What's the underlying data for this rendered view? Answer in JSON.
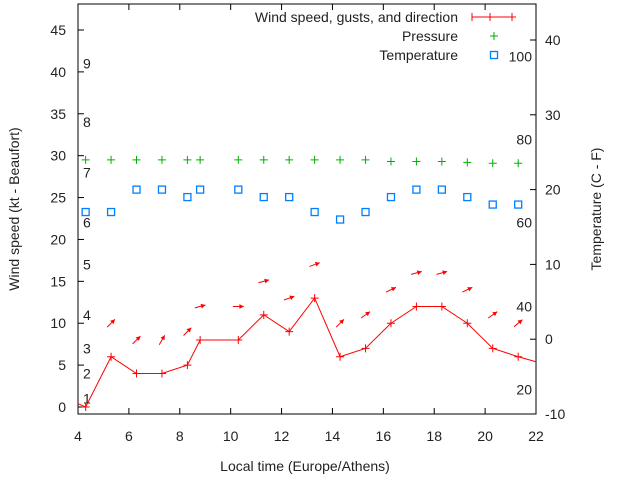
{
  "chart_data": {
    "type": "line",
    "title": "",
    "xlabel": "Local time (Europe/Athens)",
    "ylabel": "Wind speed (kt - Beaufort)",
    "y2label": "Temperature (C - F)",
    "xlim": [
      4,
      22
    ],
    "ylim": [
      0,
      45
    ],
    "y2lim": [
      -10,
      40
    ],
    "grid": false,
    "legend_position": "top-right",
    "x_ticks": [
      "4",
      "6",
      "8",
      "10",
      "12",
      "14",
      "16",
      "18",
      "20",
      "22"
    ],
    "y_ticks": [
      "0",
      "5",
      "10",
      "15",
      "20",
      "25",
      "30",
      "35",
      "40",
      "45"
    ],
    "y2_ticks": [
      "-10",
      "0",
      "10",
      "20",
      "30",
      "40"
    ],
    "beaufort_labels": [
      {
        "label": "1",
        "kt": 1
      },
      {
        "label": "2",
        "kt": 4
      },
      {
        "label": "3",
        "kt": 7
      },
      {
        "label": "4",
        "kt": 11
      },
      {
        "label": "5",
        "kt": 17
      },
      {
        "label": "6",
        "kt": 22
      },
      {
        "label": "7",
        "kt": 28
      },
      {
        "label": "8",
        "kt": 34
      },
      {
        "label": "9",
        "kt": 41
      }
    ],
    "fahrenheit_labels": [
      {
        "label": "20",
        "c": -6.7
      },
      {
        "label": "40",
        "c": 4.4
      },
      {
        "label": "60",
        "c": 15.6
      },
      {
        "label": "80",
        "c": 26.7
      },
      {
        "label": "100",
        "c": 37.8
      }
    ],
    "series": [
      {
        "name": "Wind speed, gusts, and direction",
        "color": "#ff0000",
        "x": [
          4.3,
          5.3,
          6.3,
          7.3,
          8.3,
          8.8,
          10.3,
          11.3,
          12.3,
          13.3,
          14.3,
          15.3,
          16.3,
          17.3,
          18.3,
          19.3,
          20.3,
          21.3
        ],
        "values": [
          0,
          6,
          4,
          4,
          5,
          8,
          8,
          11,
          9,
          13,
          6,
          7,
          10,
          12,
          12,
          10,
          7,
          6
        ],
        "gusts": [
          null,
          10,
          8,
          8,
          9,
          12,
          12,
          15,
          13,
          17,
          10,
          11,
          14,
          16,
          16,
          14,
          11,
          10
        ],
        "direction_deg_above_horizontal": [
          null,
          45,
          45,
          60,
          45,
          15,
          0,
          15,
          20,
          20,
          45,
          35,
          25,
          15,
          15,
          25,
          35,
          40
        ]
      },
      {
        "name": "Pressure",
        "color": "#00b000",
        "x": [
          4.3,
          5.3,
          6.3,
          7.3,
          8.3,
          8.8,
          10.3,
          11.3,
          12.3,
          13.3,
          14.3,
          15.3,
          16.3,
          17.3,
          18.3,
          19.3,
          20.3,
          21.3
        ],
        "values": [
          29.5,
          29.5,
          29.5,
          29.5,
          29.5,
          29.5,
          29.5,
          29.5,
          29.5,
          29.5,
          29.5,
          29.5,
          29.3,
          29.3,
          29.3,
          29.2,
          29.1,
          29.1
        ]
      },
      {
        "name": "Temperature",
        "color": "#0080ff",
        "axis": "y2",
        "x": [
          4.3,
          5.3,
          6.3,
          7.3,
          8.3,
          8.8,
          10.3,
          11.3,
          12.3,
          13.3,
          14.3,
          15.3,
          16.3,
          17.3,
          18.3,
          19.3,
          20.3,
          21.3
        ],
        "values": [
          17,
          17,
          20,
          20,
          19,
          20,
          20,
          19,
          19,
          17,
          16,
          17,
          19,
          20,
          20,
          19,
          18,
          18
        ]
      }
    ]
  }
}
